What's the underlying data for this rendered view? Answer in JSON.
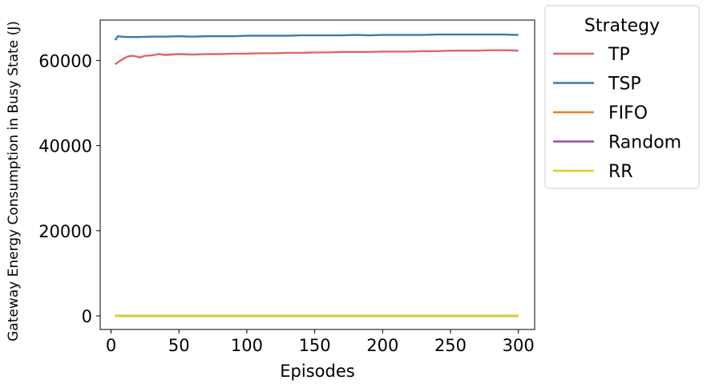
{
  "chart_data": {
    "type": "line",
    "title": "",
    "xlabel": "Episodes",
    "ylabel": "Gateway Energy Consumption in Busy State (J)",
    "xlim": [
      -8,
      312
    ],
    "ylim": [
      -3200,
      69500
    ],
    "xticks": [
      0,
      50,
      100,
      150,
      200,
      250,
      300
    ],
    "yticks": [
      0,
      20000,
      40000,
      60000
    ],
    "grid": false,
    "legend": {
      "title": "Strategy",
      "placement": "outside-top-right"
    },
    "series": [
      {
        "name": "TP",
        "color": "#e06666",
        "x": [
          3,
          6,
          9,
          12,
          15,
          18,
          21,
          25,
          30,
          35,
          40,
          45,
          50,
          60,
          70,
          80,
          90,
          100,
          110,
          120,
          130,
          140,
          150,
          160,
          170,
          180,
          190,
          200,
          210,
          220,
          230,
          240,
          250,
          260,
          270,
          280,
          290,
          300
        ],
        "values": [
          59100,
          59800,
          60400,
          60900,
          61100,
          61000,
          60700,
          61100,
          61200,
          61500,
          61300,
          61400,
          61500,
          61400,
          61500,
          61500,
          61600,
          61600,
          61700,
          61700,
          61800,
          61800,
          61900,
          61900,
          62000,
          62000,
          62000,
          62100,
          62100,
          62100,
          62200,
          62200,
          62300,
          62300,
          62300,
          62400,
          62400,
          62300
        ]
      },
      {
        "name": "TSP",
        "color": "#3b78b4",
        "x": [
          3,
          5,
          8,
          12,
          20,
          30,
          40,
          50,
          60,
          70,
          80,
          90,
          100,
          110,
          120,
          130,
          140,
          150,
          160,
          170,
          180,
          190,
          200,
          210,
          220,
          230,
          240,
          250,
          260,
          270,
          280,
          290,
          300
        ],
        "values": [
          64800,
          65700,
          65600,
          65500,
          65500,
          65600,
          65600,
          65700,
          65600,
          65700,
          65700,
          65700,
          65800,
          65800,
          65800,
          65800,
          65900,
          65900,
          65900,
          65900,
          66000,
          65900,
          66000,
          66000,
          66000,
          66000,
          66100,
          66100,
          66100,
          66100,
          66100,
          66100,
          66000
        ]
      },
      {
        "name": "FIFO",
        "color": "#f07f1f",
        "x": [
          3,
          300
        ],
        "values": [
          0,
          0
        ]
      },
      {
        "name": "Random",
        "color": "#984ea3",
        "x": [
          3,
          300
        ],
        "values": [
          0,
          0
        ]
      },
      {
        "name": "RR",
        "color": "#dcd21e",
        "x": [
          3,
          300
        ],
        "values": [
          0,
          0
        ]
      }
    ]
  }
}
